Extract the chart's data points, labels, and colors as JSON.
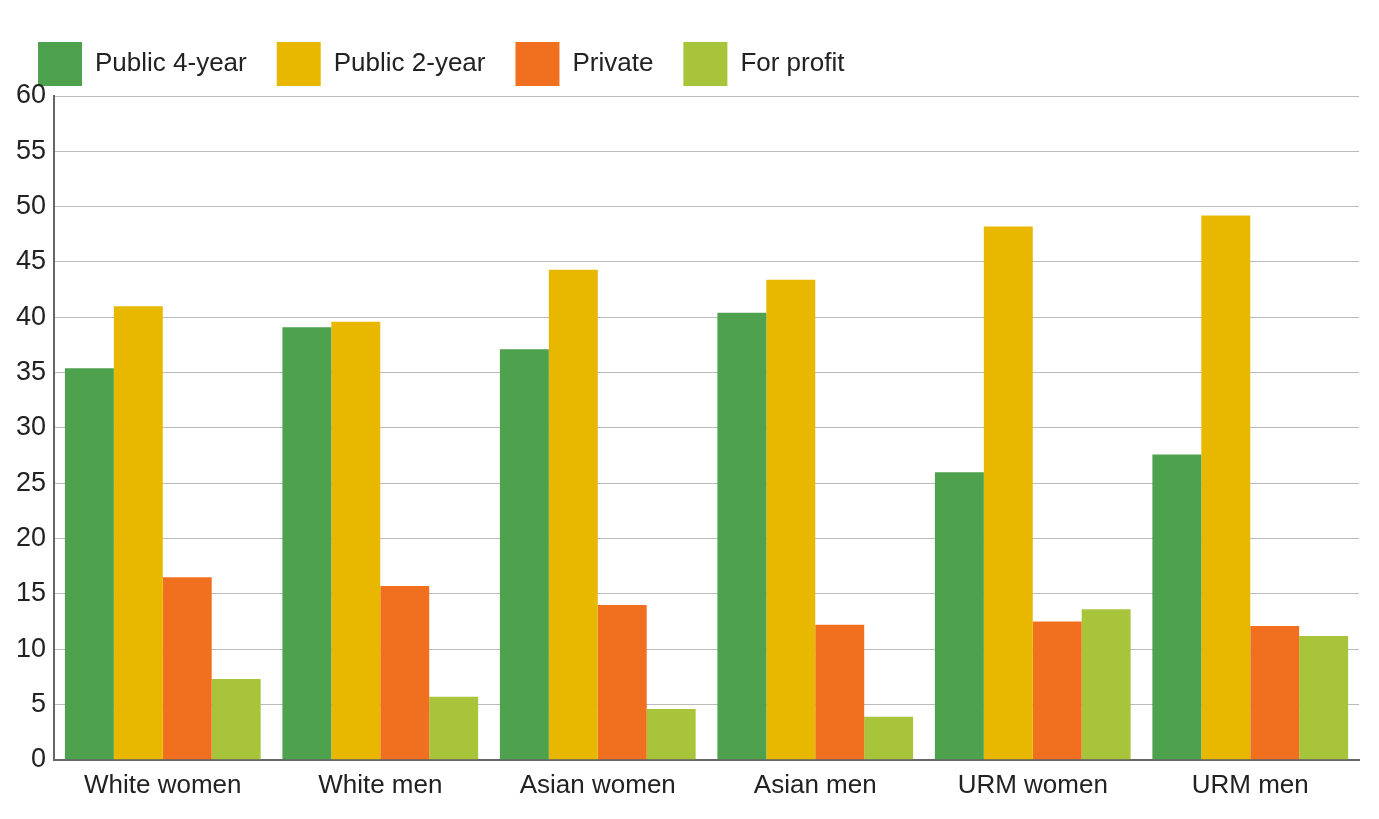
{
  "chart_data": {
    "type": "bar",
    "categories": [
      "White women",
      "White men",
      "Asian women",
      "Asian men",
      "URM women",
      "URM men"
    ],
    "series": [
      {
        "name": "Public 4-year",
        "color": "#4ea24e",
        "values": [
          35.4,
          39.1,
          37.1,
          40.4,
          26.0,
          27.6
        ]
      },
      {
        "name": "Public 2-year",
        "color": "#e8b800",
        "values": [
          41.0,
          39.6,
          44.3,
          43.4,
          48.2,
          49.2
        ]
      },
      {
        "name": "Private",
        "color": "#f07020",
        "values": [
          16.5,
          15.7,
          14.0,
          12.2,
          12.5,
          12.1
        ]
      },
      {
        "name": "For profit",
        "color": "#a8c43a",
        "values": [
          7.3,
          5.7,
          4.6,
          3.9,
          13.6,
          11.2
        ]
      }
    ],
    "ylim": [
      0,
      60
    ],
    "yticks": [
      0,
      5,
      10,
      15,
      20,
      25,
      30,
      35,
      40,
      45,
      50,
      55,
      60
    ],
    "grid": "y",
    "legend": "top left"
  }
}
